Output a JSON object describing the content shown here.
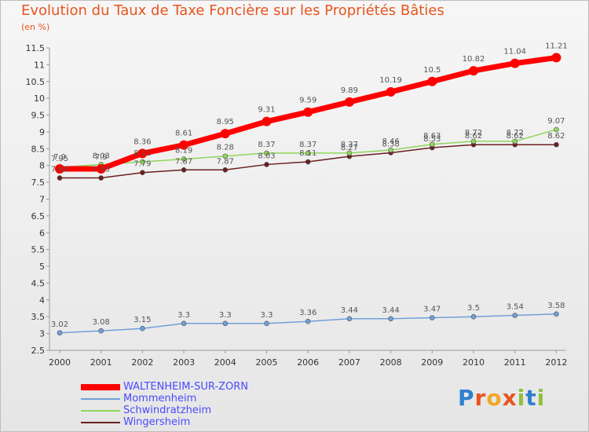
{
  "chart_data": {
    "type": "line",
    "title": "Evolution du Taux de Taxe Foncière sur les Propriétés Bâties",
    "subtitle": "(en %)",
    "x": [
      "2000",
      "2001",
      "2002",
      "2003",
      "2004",
      "2005",
      "2006",
      "2007",
      "2008",
      "2009",
      "2010",
      "2011",
      "2012"
    ],
    "ylim": [
      2.5,
      11.5
    ],
    "yticks": [
      "2.5",
      "3",
      "3.5",
      "4",
      "4.5",
      "5",
      "5.5",
      "6",
      "6.5",
      "7",
      "7.5",
      "8",
      "8.5",
      "9",
      "9.5",
      "10",
      "10.5",
      "11",
      "11.5"
    ],
    "grid": false,
    "series": [
      {
        "name": "WALTENHEIM-SUR-ZORN",
        "color": "#ff0000",
        "values": [
          7.9,
          7.9,
          8.36,
          8.61,
          8.95,
          9.31,
          9.59,
          9.89,
          10.19,
          10.5,
          10.82,
          11.04,
          11.21
        ],
        "labels": [
          "7.9",
          "7.9",
          "8.36",
          "8.61",
          "8.95",
          "9.31",
          "9.59",
          "9.89",
          "10.19",
          "10.5",
          "10.82",
          "11.04",
          "11.21"
        ]
      },
      {
        "name": "Mommenheim",
        "color": "#6fa0d8",
        "values": [
          3.02,
          3.08,
          3.15,
          3.3,
          3.3,
          3.3,
          3.36,
          3.44,
          3.44,
          3.47,
          3.5,
          3.54,
          3.58
        ],
        "labels": [
          "3.02",
          "3.08",
          "3.15",
          "3.3",
          "3.3",
          "3.3",
          "3.36",
          "3.44",
          "3.44",
          "3.47",
          "3.5",
          "3.54",
          "3.58"
        ]
      },
      {
        "name": "Schwindratzheim",
        "color": "#8fd65a",
        "values": [
          7.95,
          8.03,
          8.11,
          8.19,
          8.28,
          8.37,
          8.37,
          8.37,
          8.46,
          8.63,
          8.72,
          8.72,
          9.07
        ],
        "labels": [
          "7.95",
          "8.03",
          "8.11",
          "8.19",
          "8.28",
          "8.37",
          "8.37",
          "8.37",
          "8.46",
          "8.63",
          "8.72",
          "8.72",
          "9.07"
        ]
      },
      {
        "name": "Wingersheim",
        "color": "#6b1f1f",
        "values": [
          7.63,
          7.63,
          7.79,
          7.87,
          7.87,
          8.03,
          8.11,
          8.27,
          8.38,
          8.53,
          8.62,
          8.62,
          8.62
        ],
        "labels": [
          "7.63",
          "7.63",
          "7.79",
          "7.87",
          "7.87",
          "8.03",
          "8.11",
          "8.27",
          "8.38",
          "8.53",
          "8.62",
          "8.62",
          "8.62"
        ]
      }
    ]
  },
  "brand": {
    "text": "Proxiti",
    "colors": [
      "#2f7fcf",
      "#e8541f",
      "#f3a52a",
      "#e8541f",
      "#8fbf3f",
      "#2f7fcf",
      "#8fbf3f"
    ]
  }
}
